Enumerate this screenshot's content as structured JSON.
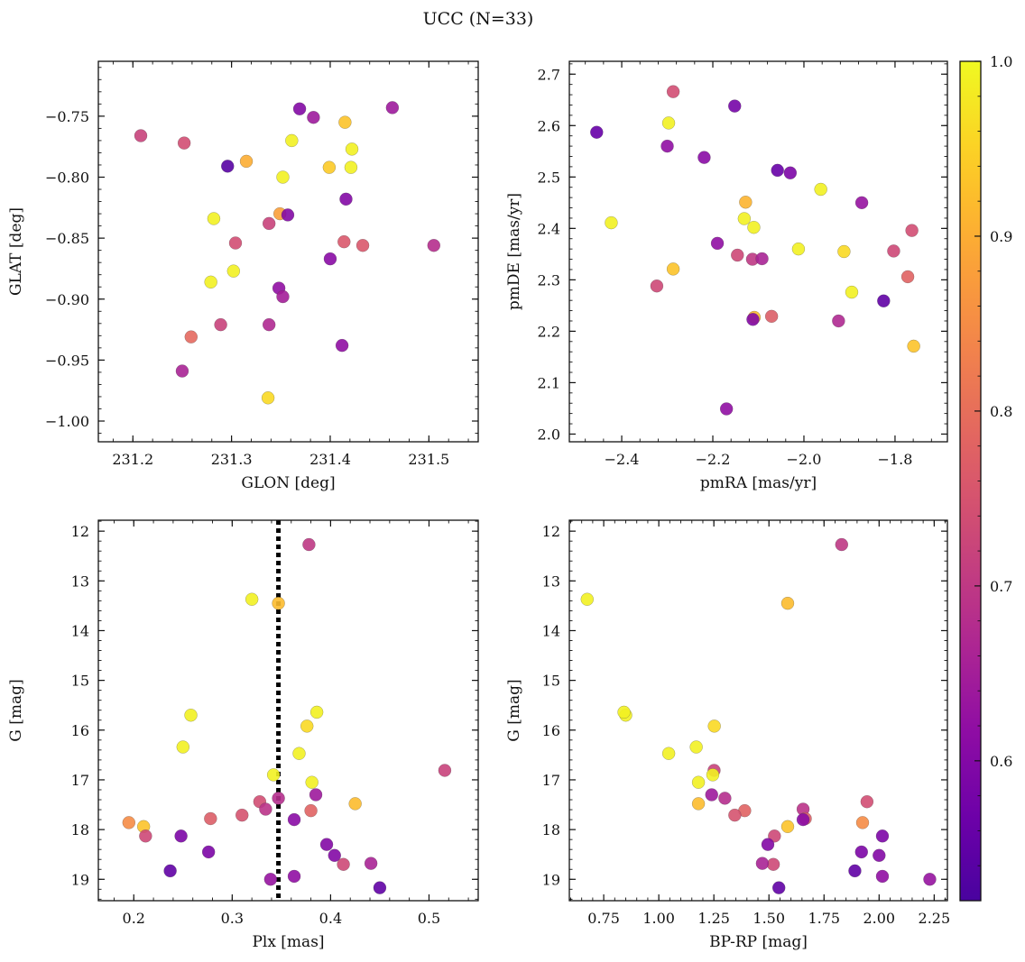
{
  "title": "UCC (N=33)",
  "colorbar": {
    "min": 0.52,
    "max": 1.0,
    "ticks": [
      0.6,
      0.7,
      0.8,
      0.9,
      1.0
    ],
    "tick_labels": [
      "0.6",
      "0.7",
      "0.8",
      "0.9",
      "1.0"
    ],
    "colormap": "plasma"
  },
  "chart_data": [
    {
      "type": "scatter",
      "xlabel": "GLON [deg]",
      "ylabel": "GLAT [deg]",
      "xlim": [
        231.165,
        231.55
      ],
      "ylim": [
        -1.017,
        -0.705
      ],
      "xticks": [
        231.2,
        231.3,
        231.4,
        231.5
      ],
      "xtick_labels": [
        "231.2",
        "231.3",
        "231.4",
        "231.5"
      ],
      "yticks": [
        -1.0,
        -0.95,
        -0.9,
        -0.85,
        -0.8,
        -0.75
      ],
      "ytick_labels": [
        "−1.00",
        "−0.95",
        "−0.90",
        "−0.85",
        "−0.80",
        "−0.75"
      ],
      "points": [
        [
          231.208,
          -0.766,
          0.72
        ],
        [
          231.252,
          -0.772,
          0.74
        ],
        [
          231.296,
          -0.791,
          0.54
        ],
        [
          231.315,
          -0.787,
          0.9
        ],
        [
          231.369,
          -0.744,
          0.6
        ],
        [
          231.383,
          -0.751,
          0.64
        ],
        [
          231.463,
          -0.743,
          0.64
        ],
        [
          231.415,
          -0.755,
          0.93
        ],
        [
          231.361,
          -0.77,
          0.99
        ],
        [
          231.422,
          -0.777,
          0.99
        ],
        [
          231.352,
          -0.8,
          0.99
        ],
        [
          231.399,
          -0.792,
          0.94
        ],
        [
          231.421,
          -0.792,
          0.99
        ],
        [
          231.416,
          -0.818,
          0.6
        ],
        [
          231.282,
          -0.834,
          0.99
        ],
        [
          231.338,
          -0.838,
          0.72
        ],
        [
          231.349,
          -0.83,
          0.88
        ],
        [
          231.357,
          -0.831,
          0.6
        ],
        [
          231.304,
          -0.854,
          0.74
        ],
        [
          231.414,
          -0.853,
          0.76
        ],
        [
          231.433,
          -0.856,
          0.76
        ],
        [
          231.505,
          -0.856,
          0.68
        ],
        [
          231.4,
          -0.867,
          0.61
        ],
        [
          231.302,
          -0.877,
          0.99
        ],
        [
          231.279,
          -0.886,
          0.99
        ],
        [
          231.348,
          -0.891,
          0.62
        ],
        [
          231.352,
          -0.898,
          0.65
        ],
        [
          231.289,
          -0.921,
          0.72
        ],
        [
          231.338,
          -0.921,
          0.67
        ],
        [
          231.259,
          -0.931,
          0.79
        ],
        [
          231.412,
          -0.938,
          0.62
        ],
        [
          231.25,
          -0.959,
          0.66
        ],
        [
          231.337,
          -0.981,
          0.96
        ]
      ]
    },
    {
      "type": "scatter",
      "xlabel": "pmRA [mas/yr]",
      "ylabel": "pmDE [mas/yr]",
      "xlim": [
        -2.515,
        -1.685
      ],
      "ylim": [
        1.985,
        2.725
      ],
      "xticks": [
        -2.4,
        -2.2,
        -2.0,
        -1.8
      ],
      "xtick_labels": [
        "−2.4",
        "−2.2",
        "−2.0",
        "−1.8"
      ],
      "yticks": [
        2.0,
        2.1,
        2.2,
        2.3,
        2.4,
        2.5,
        2.6,
        2.7
      ],
      "ytick_labels": [
        "2.0",
        "2.1",
        "2.2",
        "2.3",
        "2.4",
        "2.5",
        "2.6",
        "2.7"
      ],
      "points": [
        [
          -2.287,
          2.666,
          0.74
        ],
        [
          -2.152,
          2.638,
          0.58
        ],
        [
          -2.455,
          2.587,
          0.56
        ],
        [
          -2.297,
          2.605,
          0.99
        ],
        [
          -2.3,
          2.56,
          0.62
        ],
        [
          -2.219,
          2.538,
          0.61
        ],
        [
          -2.058,
          2.513,
          0.56
        ],
        [
          -2.03,
          2.508,
          0.59
        ],
        [
          -1.963,
          2.476,
          0.99
        ],
        [
          -1.873,
          2.45,
          0.63
        ],
        [
          -2.128,
          2.451,
          0.91
        ],
        [
          -2.131,
          2.419,
          0.99
        ],
        [
          -2.423,
          2.411,
          0.99
        ],
        [
          -2.11,
          2.402,
          0.99
        ],
        [
          -1.763,
          2.396,
          0.74
        ],
        [
          -2.19,
          2.371,
          0.62
        ],
        [
          -2.012,
          2.36,
          0.99
        ],
        [
          -1.912,
          2.355,
          0.96
        ],
        [
          -1.803,
          2.356,
          0.73
        ],
        [
          -2.146,
          2.348,
          0.73
        ],
        [
          -2.113,
          2.34,
          0.7
        ],
        [
          -2.092,
          2.341,
          0.66
        ],
        [
          -2.287,
          2.321,
          0.93
        ],
        [
          -1.772,
          2.306,
          0.78
        ],
        [
          -2.323,
          2.288,
          0.73
        ],
        [
          -1.895,
          2.276,
          0.99
        ],
        [
          -1.825,
          2.259,
          0.55
        ],
        [
          -2.109,
          2.227,
          0.92
        ],
        [
          -2.071,
          2.229,
          0.77
        ],
        [
          -2.112,
          2.223,
          0.6
        ],
        [
          -1.924,
          2.22,
          0.67
        ],
        [
          -1.759,
          2.171,
          0.93
        ],
        [
          -2.17,
          2.049,
          0.62
        ]
      ]
    },
    {
      "type": "scatter",
      "xlabel": "Plx [mas]",
      "ylabel": "G [mag]",
      "xlim": [
        0.164,
        0.55
      ],
      "ylim": [
        19.43,
        11.78
      ],
      "xticks": [
        0.2,
        0.3,
        0.4,
        0.5
      ],
      "xtick_labels": [
        "0.2",
        "0.3",
        "0.4",
        "0.5"
      ],
      "yticks": [
        12,
        13,
        14,
        15,
        16,
        17,
        18,
        19
      ],
      "ytick_labels": [
        "12",
        "13",
        "14",
        "15",
        "16",
        "17",
        "18",
        "19"
      ],
      "vline": 0.347,
      "points": [
        [
          0.378,
          12.27,
          0.7
        ],
        [
          0.32,
          13.37,
          0.99
        ],
        [
          0.347,
          13.45,
          0.92
        ],
        [
          0.258,
          15.7,
          0.99
        ],
        [
          0.386,
          15.64,
          0.99
        ],
        [
          0.376,
          15.92,
          0.96
        ],
        [
          0.25,
          16.34,
          0.99
        ],
        [
          0.368,
          16.47,
          0.99
        ],
        [
          0.516,
          16.81,
          0.72
        ],
        [
          0.342,
          16.9,
          0.99
        ],
        [
          0.381,
          17.05,
          0.99
        ],
        [
          0.385,
          17.3,
          0.64
        ],
        [
          0.347,
          17.37,
          0.68
        ],
        [
          0.328,
          17.44,
          0.74
        ],
        [
          0.425,
          17.48,
          0.92
        ],
        [
          0.334,
          17.59,
          0.69
        ],
        [
          0.38,
          17.62,
          0.78
        ],
        [
          0.278,
          17.78,
          0.77
        ],
        [
          0.31,
          17.71,
          0.75
        ],
        [
          0.363,
          17.8,
          0.61
        ],
        [
          0.195,
          17.86,
          0.85
        ],
        [
          0.21,
          17.94,
          0.93
        ],
        [
          0.212,
          18.13,
          0.73
        ],
        [
          0.248,
          18.13,
          0.59
        ],
        [
          0.396,
          18.3,
          0.6
        ],
        [
          0.276,
          18.45,
          0.59
        ],
        [
          0.404,
          18.52,
          0.6
        ],
        [
          0.413,
          18.7,
          0.73
        ],
        [
          0.441,
          18.68,
          0.66
        ],
        [
          0.237,
          18.83,
          0.55
        ],
        [
          0.339,
          19.0,
          0.63
        ],
        [
          0.363,
          18.94,
          0.62
        ],
        [
          0.45,
          19.17,
          0.55
        ]
      ]
    },
    {
      "type": "scatter",
      "xlabel": "BP-RP [mag]",
      "ylabel": "G [mag]",
      "xlim": [
        0.594,
        2.31
      ],
      "ylim": [
        19.43,
        11.78
      ],
      "xticks": [
        0.75,
        1.0,
        1.25,
        1.5,
        1.75,
        2.0,
        2.25
      ],
      "xtick_labels": [
        "0.75",
        "1.00",
        "1.25",
        "1.50",
        "1.75",
        "2.00",
        "2.25"
      ],
      "yticks": [
        12,
        13,
        14,
        15,
        16,
        17,
        18,
        19
      ],
      "ytick_labels": [
        "12",
        "13",
        "14",
        "15",
        "16",
        "17",
        "18",
        "19"
      ],
      "points": [
        [
          1.83,
          12.27,
          0.7
        ],
        [
          0.675,
          13.37,
          0.99
        ],
        [
          1.585,
          13.45,
          0.92
        ],
        [
          0.85,
          15.7,
          0.99
        ],
        [
          0.842,
          15.64,
          0.99
        ],
        [
          1.252,
          15.92,
          0.96
        ],
        [
          1.17,
          16.34,
          0.99
        ],
        [
          1.045,
          16.47,
          0.99
        ],
        [
          1.251,
          16.81,
          0.72
        ],
        [
          1.245,
          16.9,
          0.99
        ],
        [
          1.18,
          17.05,
          0.99
        ],
        [
          1.24,
          17.3,
          0.64
        ],
        [
          1.3,
          17.37,
          0.68
        ],
        [
          1.945,
          17.44,
          0.74
        ],
        [
          1.18,
          17.48,
          0.92
        ],
        [
          1.655,
          17.59,
          0.69
        ],
        [
          1.39,
          17.62,
          0.78
        ],
        [
          1.345,
          17.71,
          0.75
        ],
        [
          1.665,
          17.78,
          0.77
        ],
        [
          1.655,
          17.8,
          0.61
        ],
        [
          1.925,
          17.86,
          0.85
        ],
        [
          1.585,
          17.94,
          0.93
        ],
        [
          1.525,
          18.13,
          0.73
        ],
        [
          2.015,
          18.13,
          0.59
        ],
        [
          1.495,
          18.3,
          0.6
        ],
        [
          1.92,
          18.45,
          0.59
        ],
        [
          2.0,
          18.52,
          0.6
        ],
        [
          1.52,
          18.7,
          0.73
        ],
        [
          1.47,
          18.68,
          0.66
        ],
        [
          1.89,
          18.83,
          0.55
        ],
        [
          2.23,
          19.0,
          0.63
        ],
        [
          2.015,
          18.94,
          0.62
        ],
        [
          1.545,
          19.17,
          0.55
        ]
      ]
    }
  ]
}
